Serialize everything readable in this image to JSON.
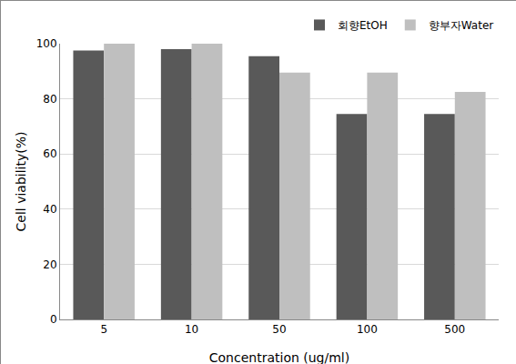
{
  "chart_data": {
    "type": "bar",
    "x_label": "Concentration (ug/ml)",
    "y_label": "Cell viability(%)",
    "categories": [
      "5",
      "10",
      "50",
      "100",
      "500"
    ],
    "series": [
      {
        "name": "회향EtOH",
        "color": "#595959",
        "values": [
          97.5,
          98,
          95.5,
          74.5,
          74.5
        ]
      },
      {
        "name": "향부자Water",
        "color": "#bfbfbf",
        "values": [
          100,
          100,
          89.5,
          89.5,
          82.5
        ]
      }
    ],
    "ylim": [
      0,
      100
    ],
    "yticks": [
      0,
      20,
      40,
      60,
      80,
      100
    ],
    "grid": true,
    "legend": "top right"
  }
}
